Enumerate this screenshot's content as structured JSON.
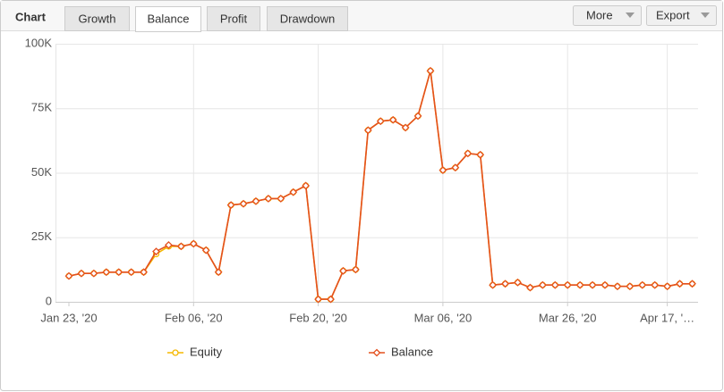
{
  "ui": {
    "header": "Chart",
    "tabs": [
      "Growth",
      "Balance",
      "Profit",
      "Drawdown"
    ],
    "active_tab": 1,
    "buttons": [
      "More",
      "Export"
    ]
  },
  "chart_data": {
    "type": "line",
    "categories": [
      "Jan 23, '20",
      null,
      null,
      null,
      null,
      null,
      null,
      null,
      null,
      null,
      "Feb 06, '20",
      null,
      null,
      null,
      null,
      null,
      null,
      null,
      null,
      null,
      "Feb 20, '20",
      null,
      null,
      null,
      null,
      null,
      null,
      null,
      null,
      null,
      "Mar 06, '20",
      null,
      null,
      null,
      null,
      null,
      null,
      null,
      null,
      null,
      "Mar 26, '20",
      null,
      null,
      null,
      null,
      null,
      null,
      null,
      "Apr 17, '…",
      null,
      null
    ],
    "series": [
      {
        "name": "Equity",
        "color": "#f5b800",
        "marker": "circle",
        "values": [
          10000,
          11000,
          11000,
          11500,
          11500,
          11500,
          11500,
          18500,
          21500,
          21500,
          22500,
          20000,
          11500,
          37500,
          38000,
          39000,
          40000,
          40000,
          42500,
          45000,
          1000,
          1000,
          12000,
          12500,
          66500,
          70000,
          70500,
          67500,
          72000,
          89500,
          51000,
          52000,
          57500,
          57000,
          6500,
          7000,
          7500,
          5500,
          6500,
          6500,
          6500,
          6500,
          6500,
          6500,
          6000,
          6000,
          6500,
          6500,
          6000,
          7000,
          7000
        ]
      },
      {
        "name": "Balance",
        "color": "#e4501e",
        "marker": "diamond",
        "values": [
          10000,
          11000,
          11000,
          11500,
          11500,
          11500,
          11500,
          19500,
          22000,
          21500,
          22500,
          20000,
          11500,
          37500,
          38000,
          39000,
          40000,
          40000,
          42500,
          45000,
          1000,
          1000,
          12000,
          12500,
          66500,
          70000,
          70500,
          67500,
          72000,
          89500,
          51000,
          52000,
          57500,
          57000,
          6500,
          7000,
          7500,
          5500,
          6500,
          6500,
          6500,
          6500,
          6500,
          6500,
          6000,
          6000,
          6500,
          6500,
          6000,
          7000,
          7000
        ]
      }
    ],
    "ylim": [
      0,
      100000
    ],
    "yticks": [
      0,
      {
        "value": 25000,
        "label": "25K"
      },
      {
        "value": 50000,
        "label": "50K"
      },
      {
        "value": 75000,
        "label": "75K"
      },
      {
        "value": 100000,
        "label": "100K"
      }
    ],
    "grid": true,
    "legend": "bottom"
  }
}
